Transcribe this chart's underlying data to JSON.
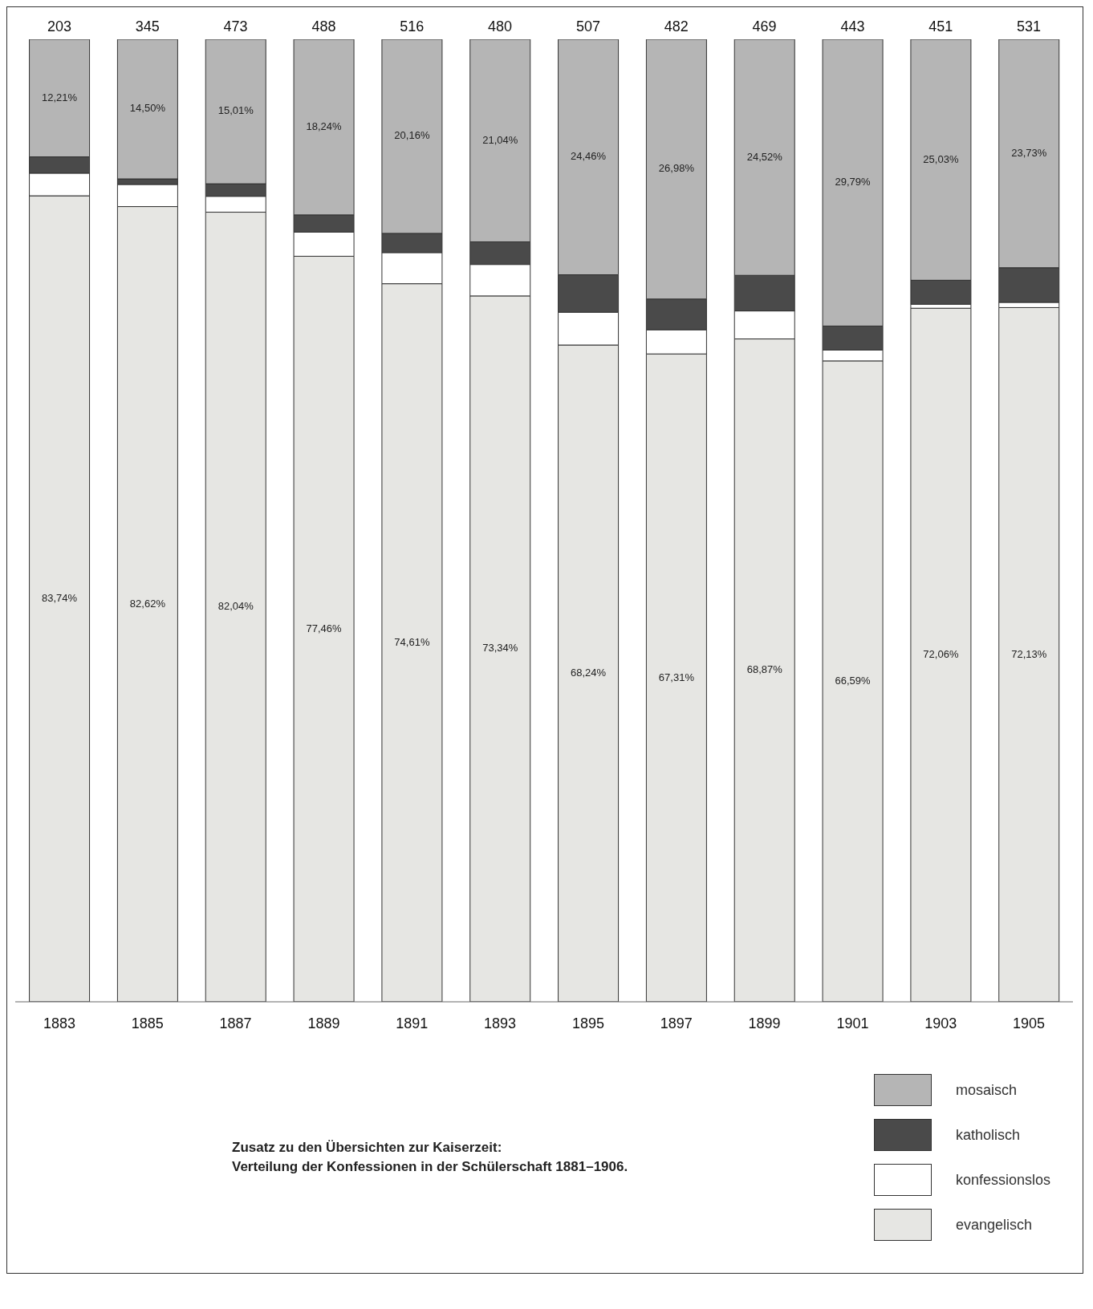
{
  "chart_data": {
    "type": "bar",
    "stacked": true,
    "categories": [
      "1883",
      "1885",
      "1887",
      "1889",
      "1891",
      "1893",
      "1895",
      "1897",
      "1899",
      "1901",
      "1903",
      "1905"
    ],
    "ylim": [
      0,
      100
    ],
    "tick_labels": "x",
    "legend": "bottom right",
    "annotations": [
      "Zusatz zu den Übersichten zur Kaiserzeit:",
      "Verteilung der Konfessionen in der Schülerschaft 1881–1906.",
      {
        "text": "203",
        "x": "1883",
        "y": 100
      },
      {
        "text": "345",
        "x": "1885",
        "y": 100
      },
      {
        "text": "473",
        "x": "1887",
        "y": 100
      },
      {
        "text": "488",
        "x": "1889",
        "y": 100
      },
      {
        "text": "516",
        "x": "1891",
        "y": 100
      },
      {
        "text": "480",
        "x": "1893",
        "y": 100
      },
      {
        "text": "507",
        "x": "1895",
        "y": 100
      },
      {
        "text": "482",
        "x": "1897",
        "y": 100
      },
      {
        "text": "469",
        "x": "1899",
        "y": 100
      },
      {
        "text": "443",
        "x": "1901",
        "y": 100
      },
      {
        "text": "451",
        "x": "1903",
        "y": 100
      },
      {
        "text": "531",
        "x": "1905",
        "y": 100
      }
    ],
    "series": [
      {
        "name": "evangelisch",
        "color": "#e6e6e3",
        "values": [
          83.74,
          82.62,
          82.04,
          77.46,
          74.61,
          73.34,
          68.24,
          67.31,
          68.87,
          66.59,
          72.06,
          72.13
        ],
        "value_labels": [
          "83,74%",
          "82,62%",
          "82,04%",
          "77,46%",
          "74,61%",
          "73,34%",
          "68,24%",
          "67,31%",
          "68,87%",
          "66,59%",
          "72,06%",
          "72,13%"
        ]
      },
      {
        "name": "konfessionslos",
        "color": "#ffffff",
        "values": [
          2.35,
          2.3,
          1.65,
          2.5,
          3.23,
          3.27,
          3.4,
          2.51,
          2.91,
          1.12,
          0.41,
          0.54
        ]
      },
      {
        "name": "katholisch",
        "color": "#4a4a4a",
        "values": [
          1.7,
          0.58,
          1.3,
          1.8,
          2.0,
          2.35,
          3.9,
          3.2,
          3.7,
          2.5,
          2.5,
          3.6
        ]
      },
      {
        "name": "mosaisch",
        "color": "#b5b5b5",
        "values": [
          12.21,
          14.5,
          15.01,
          18.24,
          20.16,
          21.04,
          24.46,
          26.98,
          24.52,
          29.79,
          25.03,
          23.73
        ],
        "value_labels": [
          "12,21%",
          "14,50%",
          "15,01%",
          "18,24%",
          "20,16%",
          "21,04%",
          "24,46%",
          "26,98%",
          "24,52%",
          "29,79%",
          "25,03%",
          "23,73%"
        ]
      }
    ]
  }
}
